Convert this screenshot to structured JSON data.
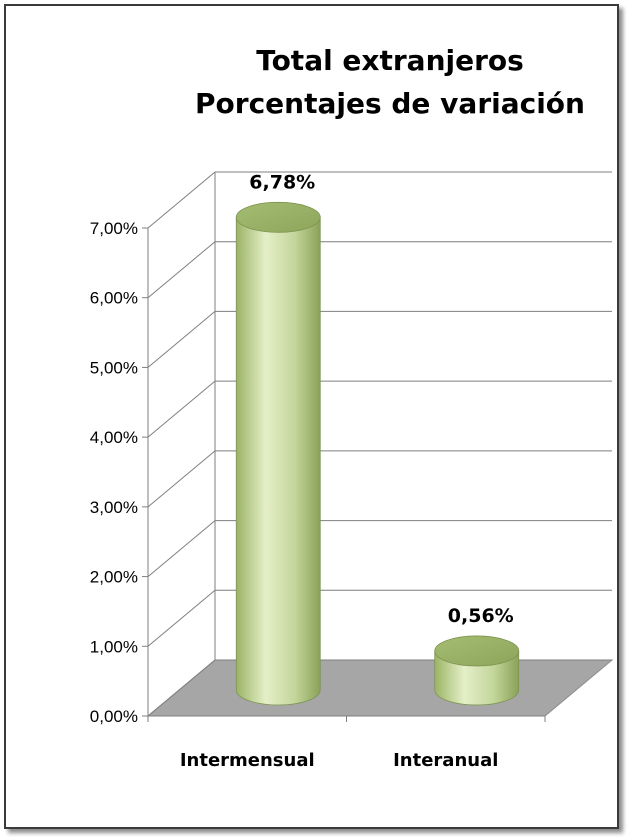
{
  "chart_data": {
    "type": "bar",
    "style": "3d-cylinder",
    "title": [
      "Total extranjeros",
      "Porcentajes de variación"
    ],
    "categories": [
      "Intermensual",
      "Interanual"
    ],
    "values": [
      6.78,
      0.56
    ],
    "data_labels": [
      "6,78%",
      "0,56%"
    ],
    "y_ticks": [
      "0,00%",
      "1,00%",
      "2,00%",
      "3,00%",
      "4,00%",
      "5,00%",
      "6,00%",
      "7,00%"
    ],
    "ylim": [
      0,
      7
    ],
    "grid": true,
    "legend": "none",
    "colors": {
      "bar": "#c3d69b",
      "bar_dark": "#8aa158",
      "floor": "#a6a6a6",
      "grid": "#7f7f7f"
    }
  }
}
